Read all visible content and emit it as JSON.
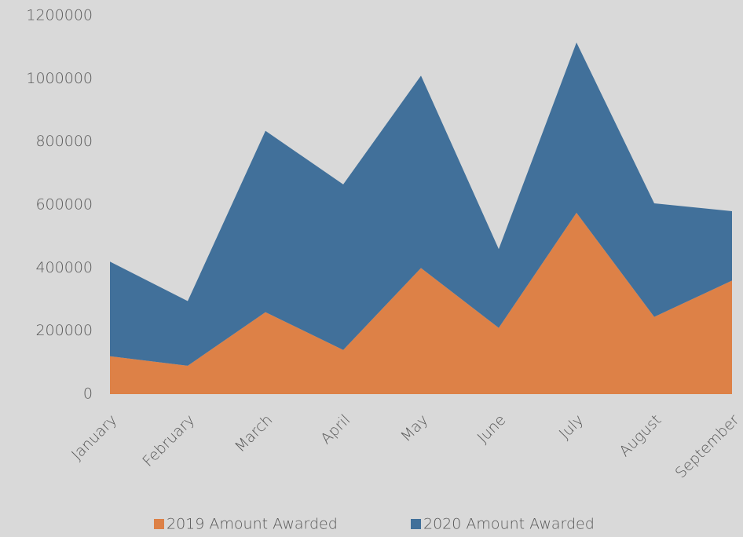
{
  "chart_data": {
    "type": "stacked_area",
    "categories": [
      "January",
      "February",
      "March",
      "April",
      "May",
      "June",
      "July",
      "August",
      "September"
    ],
    "series": [
      {
        "name": "2019 Amount Awarded",
        "color": "#dd8147",
        "values": [
          120000,
          90000,
          260000,
          140000,
          400000,
          210000,
          575000,
          245000,
          360000
        ]
      },
      {
        "name": "2020 Amount Awarded",
        "color": "#41709a",
        "values": [
          300000,
          205000,
          575000,
          525000,
          610000,
          250000,
          540000,
          360000,
          220000
        ]
      }
    ],
    "ylim": [
      0,
      1200000
    ],
    "yticks": [
      0,
      200000,
      400000,
      600000,
      800000,
      1000000,
      1200000
    ],
    "legend": "bottom"
  }
}
